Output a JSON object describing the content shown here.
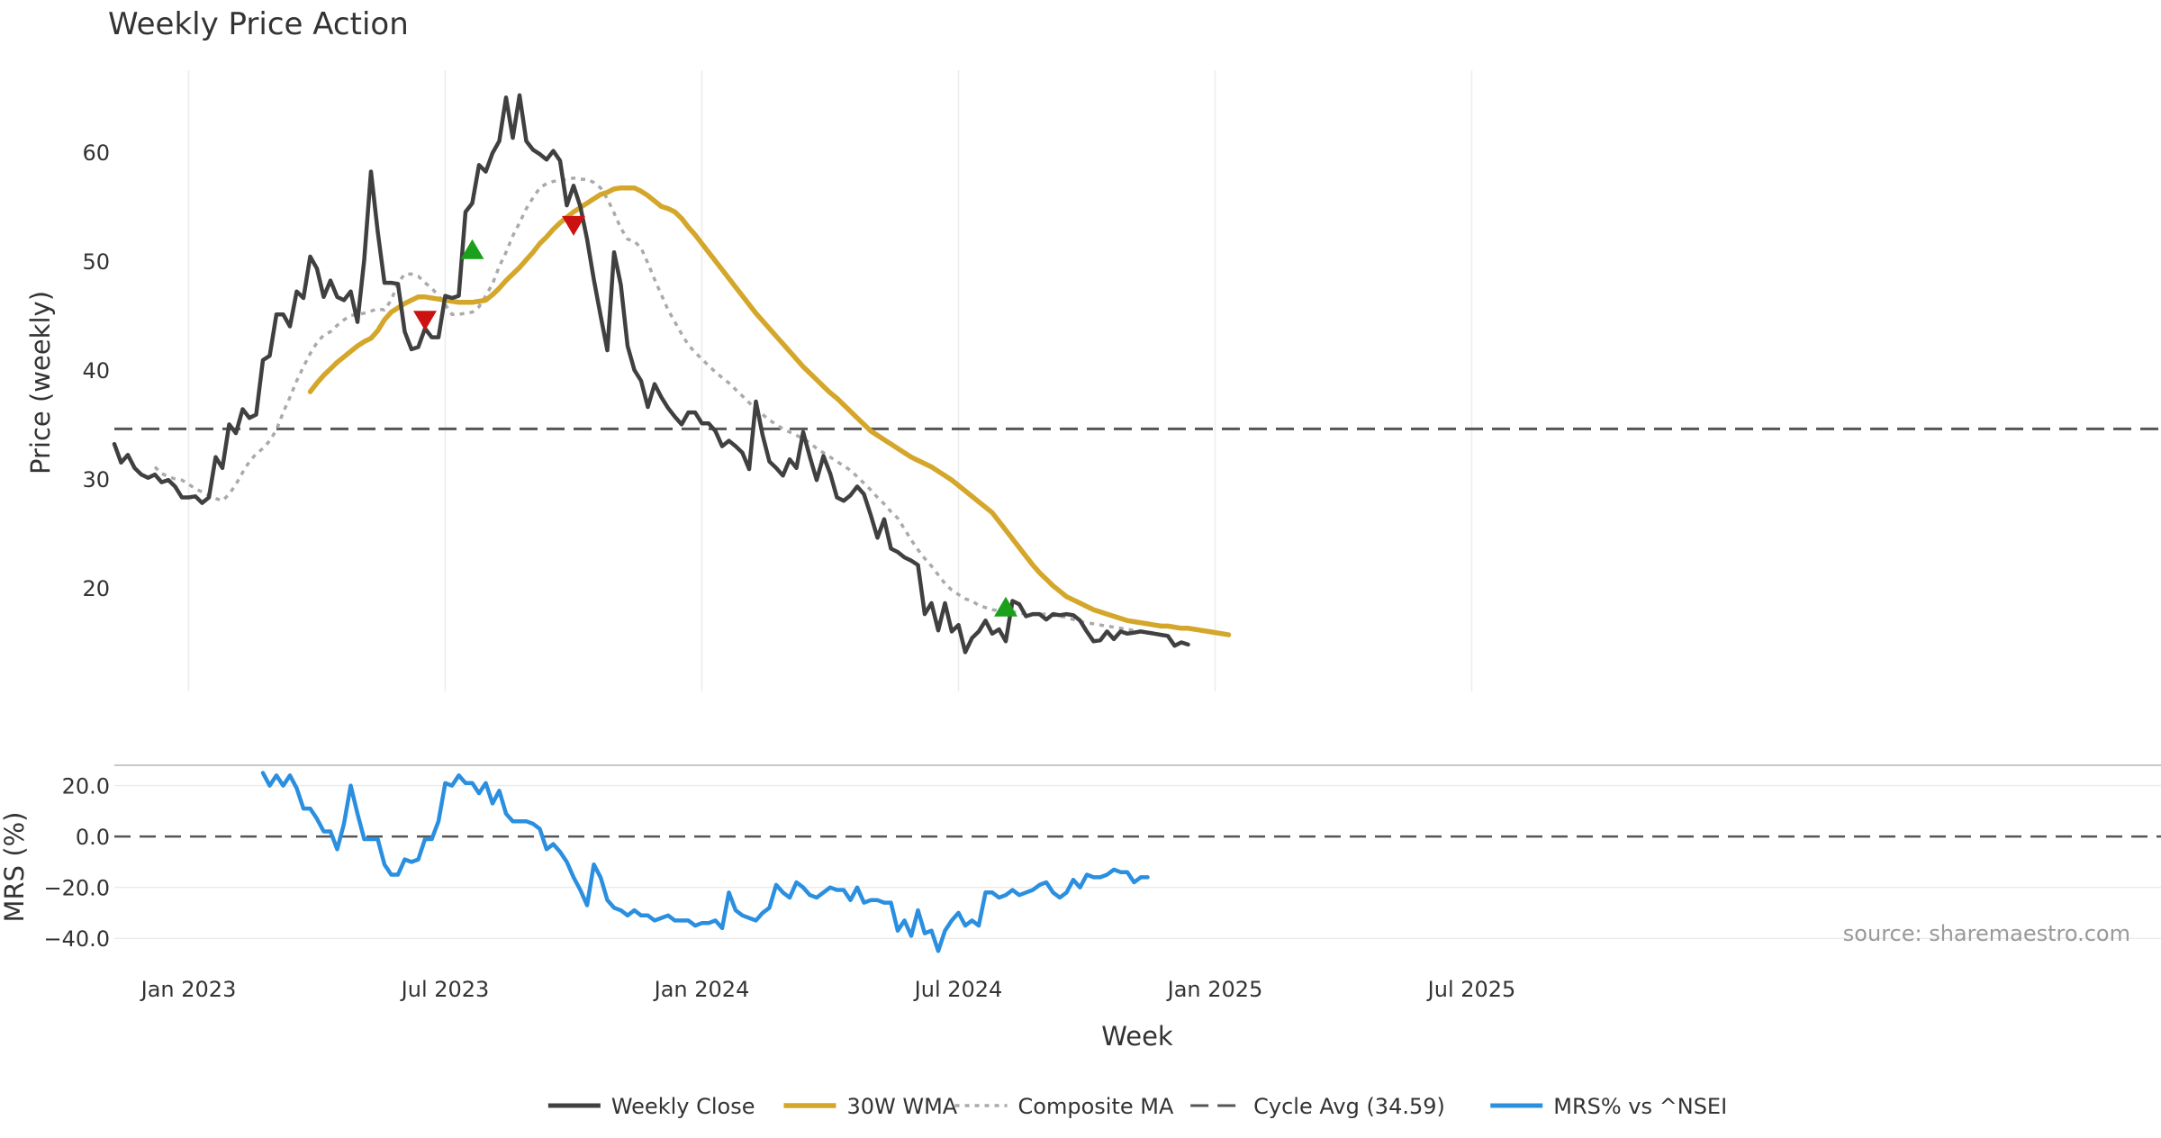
{
  "chart_data": {
    "type": "line",
    "title": "Weekly Price Action",
    "xlabel": "Week",
    "source": "source: sharemaestro.com",
    "x_ticks": [
      "Jan 2023",
      "Jul 2023",
      "Jan 2024",
      "Jul 2024",
      "Jan 2025",
      "Jul 2025"
    ],
    "colors": {
      "close": "#404040",
      "wma": "#d4a62a",
      "composite": "#aaaaaa",
      "cycle": "#555555",
      "mrs": "#2b8fe0",
      "buy": "#1aa01a",
      "sell": "#cc1111"
    },
    "price_panel": {
      "ylabel": "Price (weekly)",
      "ylim": [
        10.5,
        67.5
      ],
      "yticks": [
        "20",
        "30",
        "40",
        "50",
        "60"
      ],
      "cycle_avg": 34.59,
      "series": [
        {
          "name": "Weekly Close",
          "start_index": 0,
          "values": [
            33.2,
            31.5,
            32.2,
            31.0,
            30.4,
            30.1,
            30.4,
            29.7,
            29.9,
            29.3,
            28.3,
            28.3,
            28.4,
            27.8,
            28.3,
            32.0,
            31.0,
            35.0,
            34.2,
            36.4,
            35.6,
            35.9,
            40.9,
            41.3,
            45.1,
            45.1,
            44.0,
            47.2,
            46.6,
            50.4,
            49.3,
            46.7,
            48.2,
            46.7,
            46.4,
            47.2,
            44.4,
            50.1,
            58.2,
            52.7,
            48.0,
            48.0,
            47.9,
            43.5,
            41.9,
            42.1,
            43.8,
            43.0,
            43.0,
            46.8,
            46.6,
            46.8,
            54.5,
            55.3,
            58.8,
            58.2,
            59.9,
            61.0,
            65.0,
            61.3,
            65.2,
            61.0,
            60.2,
            59.8,
            59.3,
            60.1,
            59.2,
            55.1,
            56.9,
            55.0,
            52.0,
            48.3,
            45.0,
            41.8,
            50.8,
            47.8,
            42.2,
            40.0,
            39.0,
            36.6,
            38.7,
            37.5,
            36.5,
            35.7,
            35.0,
            36.1,
            36.1,
            35.1,
            35.1,
            34.4,
            33.0,
            33.5,
            33.0,
            32.4,
            30.9,
            37.1,
            34.0,
            31.6,
            31.0,
            30.3,
            31.8,
            31.0,
            34.3,
            32.0,
            29.9,
            32.1,
            30.5,
            28.3,
            28.0,
            28.5,
            29.3,
            28.6,
            26.7,
            24.6,
            26.3,
            23.6,
            23.3,
            22.8,
            22.5,
            22.1,
            17.6,
            18.6,
            16.1,
            18.6,
            16.0,
            16.6,
            14.1,
            15.4,
            16.0,
            17.0,
            15.8,
            16.2,
            15.1,
            18.8,
            18.5,
            17.4,
            17.6,
            17.6,
            17.1,
            17.6,
            17.5,
            17.6,
            17.5,
            17.0,
            16.0,
            15.1,
            15.2,
            16.0,
            15.3,
            16.0,
            15.8,
            15.9,
            16.0,
            15.9,
            15.8,
            15.7,
            15.6,
            14.7,
            15.0,
            14.8
          ]
        },
        {
          "name": "30W WMA",
          "start_index": 29,
          "values": [
            38.0,
            38.8,
            39.5,
            40.1,
            40.7,
            41.2,
            41.7,
            42.2,
            42.6,
            42.9,
            43.6,
            44.6,
            45.3,
            45.7,
            46.1,
            46.4,
            46.7,
            46.7,
            46.6,
            46.5,
            46.4,
            46.3,
            46.2,
            46.2,
            46.2,
            46.3,
            46.4,
            46.9,
            47.5,
            48.2,
            48.8,
            49.4,
            50.1,
            50.8,
            51.6,
            52.2,
            52.9,
            53.5,
            54.0,
            54.5,
            54.9,
            55.3,
            55.7,
            56.1,
            56.3,
            56.6,
            56.7,
            56.7,
            56.7,
            56.4,
            56.0,
            55.5,
            55.0,
            54.8,
            54.5,
            53.9,
            53.1,
            52.4,
            51.6,
            50.8,
            50.0,
            49.2,
            48.4,
            47.6,
            46.8,
            46.0,
            45.2,
            44.5,
            43.8,
            43.1,
            42.4,
            41.7,
            41.0,
            40.3,
            39.7,
            39.1,
            38.5,
            37.9,
            37.4,
            36.8,
            36.2,
            35.6,
            35.0,
            34.4,
            34.0,
            33.6,
            33.2,
            32.8,
            32.4,
            32.0,
            31.7,
            31.4,
            31.1,
            30.7,
            30.3,
            29.9,
            29.4,
            28.9,
            28.4,
            27.9,
            27.4,
            26.9,
            26.1,
            25.3,
            24.5,
            23.7,
            22.9,
            22.1,
            21.4,
            20.8,
            20.2,
            19.7,
            19.2,
            18.9,
            18.6,
            18.3,
            18.0,
            17.8,
            17.6,
            17.4,
            17.2,
            17.0,
            16.9,
            16.8,
            16.7,
            16.6,
            16.5,
            16.5,
            16.4,
            16.3,
            16.3,
            16.2,
            16.1,
            16.0,
            15.9,
            15.8,
            15.7
          ]
        },
        {
          "name": "Composite MA",
          "start_index": 6,
          "values": [
            31.1,
            30.5,
            30.2,
            30.0,
            29.9,
            29.5,
            29.1,
            28.8,
            28.5,
            28.2,
            28.0,
            28.6,
            29.5,
            30.6,
            31.6,
            32.3,
            32.8,
            33.5,
            34.5,
            36.1,
            37.5,
            39.0,
            40.3,
            41.5,
            42.5,
            43.2,
            43.5,
            44.1,
            44.6,
            45.0,
            45.1,
            45.2,
            45.4,
            45.6,
            45.5,
            46.4,
            48.0,
            48.8,
            48.8,
            48.6,
            48.0,
            47.5,
            46.8,
            46.0,
            45.1,
            45.1,
            45.2,
            45.3,
            45.8,
            46.8,
            47.9,
            49.5,
            50.8,
            52.3,
            53.5,
            54.8,
            55.8,
            56.7,
            57.1,
            57.3,
            57.4,
            57.5,
            57.6,
            57.5,
            57.5,
            57.2,
            56.7,
            55.7,
            54.4,
            53.0,
            52.0,
            51.8,
            51.2,
            49.8,
            48.3,
            46.9,
            45.5,
            44.4,
            43.3,
            42.3,
            41.6,
            41.0,
            40.4,
            39.8,
            39.3,
            38.8,
            38.2,
            37.6,
            37.0,
            36.4,
            35.9,
            35.4,
            35.0,
            34.6,
            34.3,
            34.0,
            33.7,
            33.3,
            32.8,
            32.4,
            32.0,
            31.6,
            31.2,
            30.8,
            30.2,
            29.6,
            29.0,
            28.3,
            27.7,
            27.0,
            26.4,
            25.4,
            24.4,
            23.5,
            22.7,
            22.0,
            21.2,
            20.4,
            19.8,
            19.4,
            19.0,
            18.8,
            18.4,
            18.2,
            18.0,
            17.9,
            17.8,
            17.8,
            17.7,
            17.6,
            17.6,
            17.6,
            17.6,
            17.5,
            17.4,
            17.3,
            17.1,
            16.9,
            16.8,
            16.7,
            16.6,
            16.5,
            16.4,
            16.3,
            16.2,
            16.1,
            16.0,
            15.9,
            15.9
          ]
        }
      ],
      "signals": [
        {
          "type": "sell",
          "index": 46,
          "value": 44.6
        },
        {
          "type": "buy",
          "index": 53,
          "value": 51.0
        },
        {
          "type": "sell",
          "index": 68,
          "value": 53.3
        },
        {
          "type": "buy",
          "index": 132,
          "value": 18.2
        }
      ]
    },
    "mrs_panel": {
      "ylabel": "MRS (%)",
      "ylim": [
        -47,
        28
      ],
      "yticks": [
        "20.0",
        "0.0",
        "−20.0",
        "−40.0"
      ],
      "zero_line": 0,
      "series": [
        {
          "name": "MRS% vs ^NSEI",
          "start_index": 22,
          "values": [
            25,
            20,
            24,
            20,
            24,
            19,
            11,
            11,
            7,
            2,
            2,
            -5,
            5,
            20,
            9,
            -1,
            -1,
            -1,
            -11,
            -15,
            -15,
            -9,
            -10,
            -9,
            -1,
            -1,
            6,
            21,
            20,
            24,
            21,
            21,
            17,
            21,
            13,
            18,
            9,
            6,
            6,
            6,
            5,
            3,
            -5,
            -3,
            -6,
            -10,
            -16,
            -21,
            -27,
            -11,
            -16,
            -25,
            -28,
            -29,
            -31,
            -29,
            -31,
            -31,
            -33,
            -32,
            -31,
            -33,
            -33,
            -33,
            -35,
            -34,
            -34,
            -33,
            -36,
            -22,
            -29,
            -31,
            -32,
            -33,
            -30,
            -28,
            -19,
            -22,
            -24,
            -18,
            -20,
            -23,
            -24,
            -22,
            -20,
            -21,
            -21,
            -25,
            -20,
            -26,
            -25,
            -25,
            -26,
            -26,
            -37,
            -33,
            -39,
            -29,
            -38,
            -37,
            -45,
            -37,
            -33,
            -30,
            -35,
            -33,
            -35,
            -22,
            -22,
            -24,
            -23,
            -21,
            -23,
            -22,
            -21,
            -19,
            -18,
            -22,
            -24,
            -22,
            -17,
            -20,
            -15,
            -16,
            -16,
            -15,
            -13,
            -14,
            -14,
            -18,
            -16,
            -16
          ]
        }
      ]
    },
    "legend": [
      "Weekly Close",
      "30W WMA",
      "Composite MA",
      "Cycle Avg (34.59)",
      "MRS% vs ^NSEI"
    ]
  }
}
